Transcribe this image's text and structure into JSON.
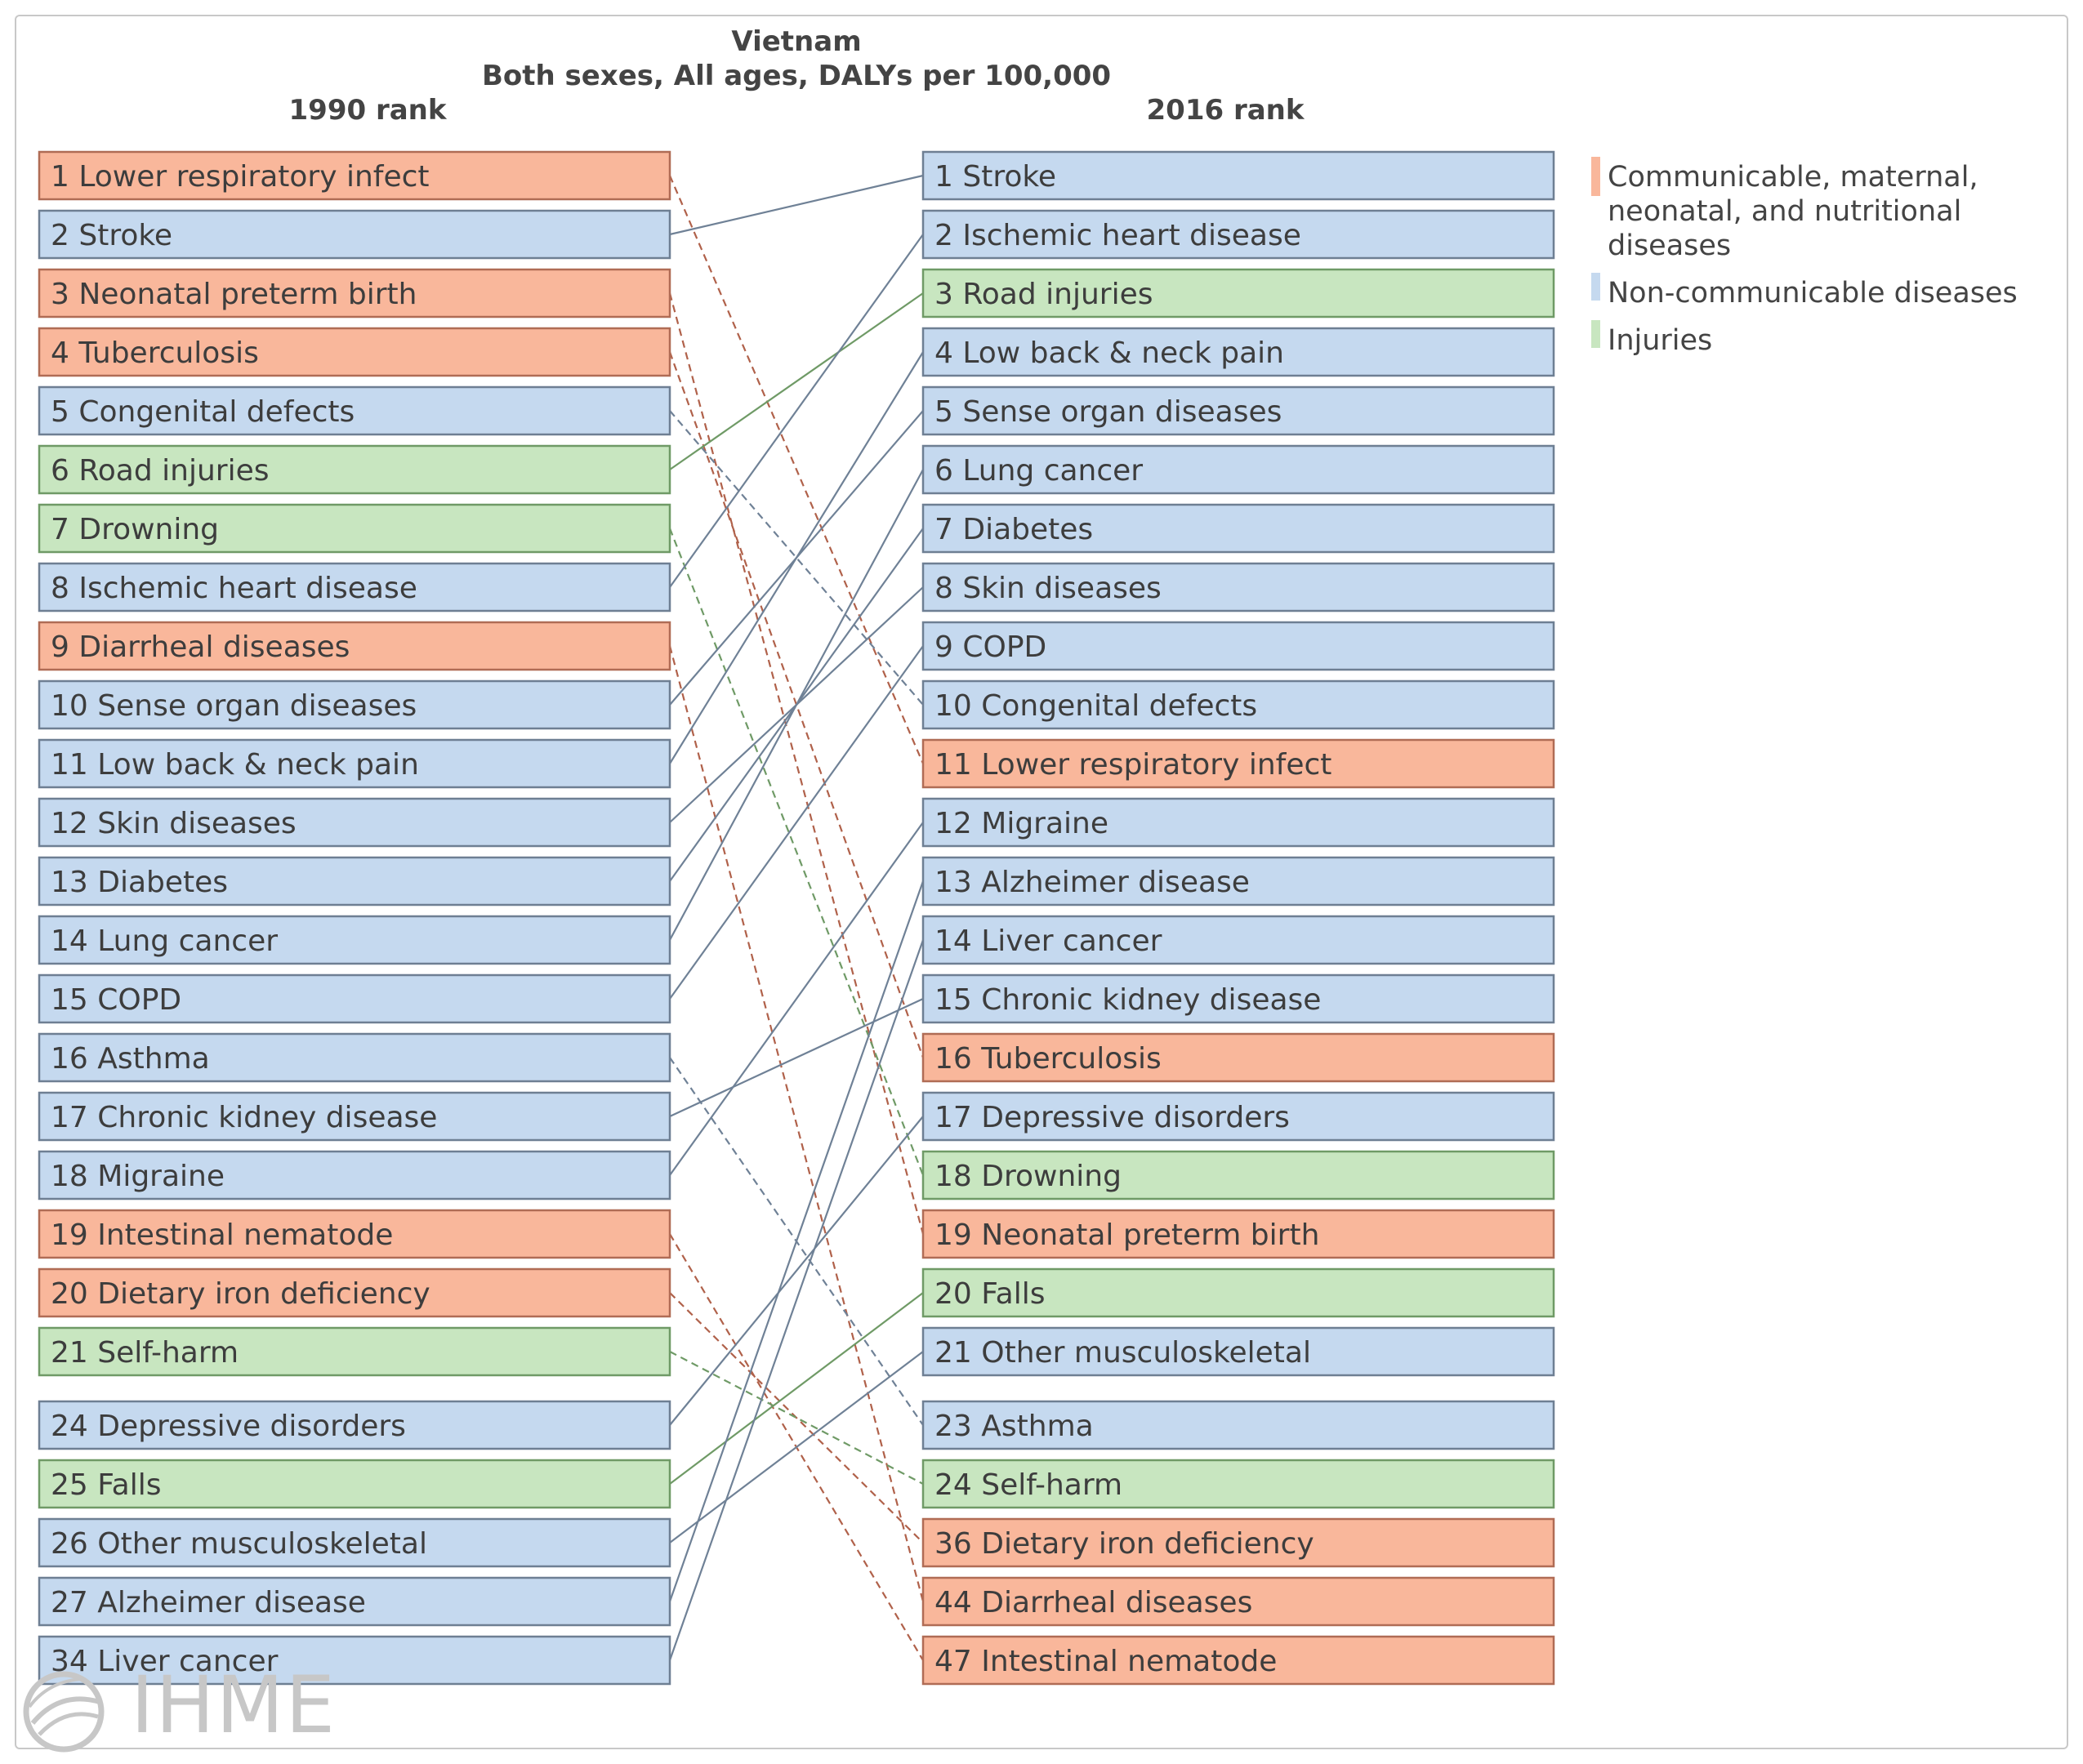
{
  "chart_data": {
    "type": "table",
    "title": "Vietnam",
    "subtitle": "Both sexes, All ages, DALYs per 100,000",
    "left_header": "1990 rank",
    "right_header": "2016 rank",
    "legend": [
      {
        "key": "communicable",
        "label": "Communicable, maternal, neonatal, and nutritional diseases",
        "lines": [
          "Communicable, maternal,",
          "neonatal, and nutritional",
          "diseases"
        ],
        "color": "#f9b79b"
      },
      {
        "key": "ncd",
        "label": "Non-communicable diseases",
        "lines": [
          "Non-communicable diseases"
        ],
        "color": "#c5d9ef"
      },
      {
        "key": "injuries",
        "label": "Injuries",
        "lines": [
          "Injuries"
        ],
        "color": "#c8e6c0"
      }
    ],
    "category_styles": {
      "communicable": {
        "fill": "#f9b79b",
        "stroke": "#b06c55",
        "line": "#b0614a"
      },
      "ncd": {
        "fill": "#c5d9ef",
        "stroke": "#6e7f93",
        "line": "#6f8196"
      },
      "injuries": {
        "fill": "#c8e6c0",
        "stroke": "#6f9a66",
        "line": "#6f9a66"
      }
    },
    "rank_1990": [
      {
        "rank": 1,
        "cause": "Lower respiratory infect",
        "text": "1 Lower respiratory infect",
        "category": "communicable"
      },
      {
        "rank": 2,
        "cause": "Stroke",
        "text": "2 Stroke",
        "category": "ncd"
      },
      {
        "rank": 3,
        "cause": "Neonatal preterm birth",
        "text": "3 Neonatal preterm birth",
        "category": "communicable"
      },
      {
        "rank": 4,
        "cause": "Tuberculosis",
        "text": "4 Tuberculosis",
        "category": "communicable"
      },
      {
        "rank": 5,
        "cause": "Congenital defects",
        "text": "5 Congenital defects",
        "category": "ncd"
      },
      {
        "rank": 6,
        "cause": "Road injuries",
        "text": "6 Road injuries",
        "category": "injuries"
      },
      {
        "rank": 7,
        "cause": "Drowning",
        "text": "7 Drowning",
        "category": "injuries"
      },
      {
        "rank": 8,
        "cause": "Ischemic heart disease",
        "text": "8 Ischemic heart disease",
        "category": "ncd"
      },
      {
        "rank": 9,
        "cause": "Diarrheal diseases",
        "text": "9 Diarrheal diseases",
        "category": "communicable"
      },
      {
        "rank": 10,
        "cause": "Sense organ diseases",
        "text": "10 Sense organ diseases",
        "category": "ncd"
      },
      {
        "rank": 11,
        "cause": "Low back & neck pain",
        "text": "11 Low back & neck pain",
        "category": "ncd"
      },
      {
        "rank": 12,
        "cause": "Skin diseases",
        "text": "12 Skin diseases",
        "category": "ncd"
      },
      {
        "rank": 13,
        "cause": "Diabetes",
        "text": "13 Diabetes",
        "category": "ncd"
      },
      {
        "rank": 14,
        "cause": "Lung cancer",
        "text": "14 Lung cancer",
        "category": "ncd"
      },
      {
        "rank": 15,
        "cause": "COPD",
        "text": "15 COPD",
        "category": "ncd"
      },
      {
        "rank": 16,
        "cause": "Asthma",
        "text": "16 Asthma",
        "category": "ncd"
      },
      {
        "rank": 17,
        "cause": "Chronic kidney disease",
        "text": "17 Chronic kidney disease",
        "category": "ncd"
      },
      {
        "rank": 18,
        "cause": "Migraine",
        "text": "18 Migraine",
        "category": "ncd"
      },
      {
        "rank": 19,
        "cause": "Intestinal nematode",
        "text": "19 Intestinal nematode",
        "category": "communicable"
      },
      {
        "rank": 20,
        "cause": "Dietary iron deficiency",
        "text": "20 Dietary iron deficiency",
        "category": "communicable"
      },
      {
        "rank": 21,
        "cause": "Self-harm",
        "text": "21 Self-harm",
        "category": "injuries"
      },
      {
        "rank": 24,
        "cause": "Depressive disorders",
        "text": "24 Depressive disorders",
        "category": "ncd"
      },
      {
        "rank": 25,
        "cause": "Falls",
        "text": "25 Falls",
        "category": "injuries"
      },
      {
        "rank": 26,
        "cause": "Other musculoskeletal",
        "text": "26 Other musculoskeletal",
        "category": "ncd"
      },
      {
        "rank": 27,
        "cause": "Alzheimer disease",
        "text": "27 Alzheimer disease",
        "category": "ncd"
      },
      {
        "rank": 34,
        "cause": "Liver cancer",
        "text": "34 Liver cancer",
        "category": "ncd"
      }
    ],
    "rank_2016": [
      {
        "rank": 1,
        "cause": "Stroke",
        "text": "1 Stroke",
        "category": "ncd"
      },
      {
        "rank": 2,
        "cause": "Ischemic heart disease",
        "text": "2 Ischemic heart disease",
        "category": "ncd"
      },
      {
        "rank": 3,
        "cause": "Road injuries",
        "text": "3 Road injuries",
        "category": "injuries"
      },
      {
        "rank": 4,
        "cause": "Low back & neck pain",
        "text": "4 Low back & neck pain",
        "category": "ncd"
      },
      {
        "rank": 5,
        "cause": "Sense organ diseases",
        "text": "5 Sense organ diseases",
        "category": "ncd"
      },
      {
        "rank": 6,
        "cause": "Lung cancer",
        "text": "6 Lung cancer",
        "category": "ncd"
      },
      {
        "rank": 7,
        "cause": "Diabetes",
        "text": "7 Diabetes",
        "category": "ncd"
      },
      {
        "rank": 8,
        "cause": "Skin diseases",
        "text": "8 Skin diseases",
        "category": "ncd"
      },
      {
        "rank": 9,
        "cause": "COPD",
        "text": "9 COPD",
        "category": "ncd"
      },
      {
        "rank": 10,
        "cause": "Congenital defects",
        "text": "10 Congenital defects",
        "category": "ncd"
      },
      {
        "rank": 11,
        "cause": "Lower respiratory infect",
        "text": "11 Lower respiratory infect",
        "category": "communicable"
      },
      {
        "rank": 12,
        "cause": "Migraine",
        "text": "12 Migraine",
        "category": "ncd"
      },
      {
        "rank": 13,
        "cause": "Alzheimer disease",
        "text": "13 Alzheimer disease",
        "category": "ncd"
      },
      {
        "rank": 14,
        "cause": "Liver cancer",
        "text": "14 Liver cancer",
        "category": "ncd"
      },
      {
        "rank": 15,
        "cause": "Chronic kidney disease",
        "text": "15 Chronic kidney disease",
        "category": "ncd"
      },
      {
        "rank": 16,
        "cause": "Tuberculosis",
        "text": "16 Tuberculosis",
        "category": "communicable"
      },
      {
        "rank": 17,
        "cause": "Depressive disorders",
        "text": "17 Depressive disorders",
        "category": "ncd"
      },
      {
        "rank": 18,
        "cause": "Drowning",
        "text": "18 Drowning",
        "category": "injuries"
      },
      {
        "rank": 19,
        "cause": "Neonatal preterm birth",
        "text": "19 Neonatal preterm birth",
        "category": "communicable"
      },
      {
        "rank": 20,
        "cause": "Falls",
        "text": "20 Falls",
        "category": "injuries"
      },
      {
        "rank": 21,
        "cause": "Other musculoskeletal",
        "text": "21 Other musculoskeletal",
        "category": "ncd"
      },
      {
        "rank": 23,
        "cause": "Asthma",
        "text": "23 Asthma",
        "category": "ncd"
      },
      {
        "rank": 24,
        "cause": "Self-harm",
        "text": "24 Self-harm",
        "category": "injuries"
      },
      {
        "rank": 36,
        "cause": "Dietary iron deficiency",
        "text": "36 Dietary iron deficiency",
        "category": "communicable"
      },
      {
        "rank": 44,
        "cause": "Diarrheal diseases",
        "text": "44 Diarrheal diseases",
        "category": "communicable"
      },
      {
        "rank": 47,
        "cause": "Intestinal nematode",
        "text": "47 Intestinal nematode",
        "category": "communicable"
      }
    ],
    "line_style_rule": "solid line = rank improved or held (moved up); dashed line = rank fell"
  },
  "watermark": {
    "text": "IHME"
  }
}
